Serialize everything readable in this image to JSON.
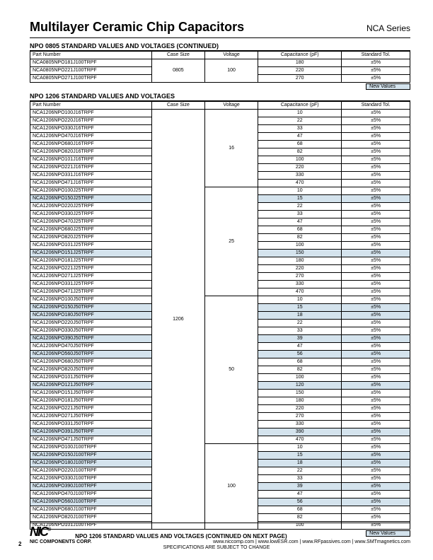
{
  "doc_title": "Multilayer Ceramic Chip Capacitors",
  "series": "NCA Series",
  "section1_title": "NPO 0805 STANDARD VALUES AND VOLTAGES (CONTINUED)",
  "section2_title": "NPO 1206 STANDARD VALUES AND VOLTAGES",
  "new_values_label": "New Values",
  "page_number": "2",
  "footer_next": "NPO 1206 STANDARD VALUES AND VOLTAGES (CONTINUED ON NEXT PAGE)",
  "footer_corp": "NIC COMPONENTS CORP.",
  "footer_urls": "www.niccomp.com   |  www.lowESR.com   |  www.RFpassives.com   |  www.SMTmagnetics.com",
  "footer_spec": "SPECIFICATIONS ARE SUBJECT TO CHANGE",
  "logo_text": "NIC",
  "headers": {
    "pn": "Part Number",
    "cs": "Case Size",
    "v": "Voltage",
    "cap": "Capacitance (pF)",
    "tol": "Standard Tol."
  },
  "t1": {
    "case_size": "0805",
    "voltage": "100",
    "rows": [
      {
        "pn": "NCA0805NPO181J100TRPF",
        "cap": "180",
        "tol": "±5%",
        "hl": false
      },
      {
        "pn": "NCA0805NPO221J100TRPF",
        "cap": "220",
        "tol": "±5%",
        "hl": false
      },
      {
        "pn": "NCA0805NPO271J100TRPF",
        "cap": "270",
        "tol": "±5%",
        "hl": false
      }
    ]
  },
  "t2": {
    "case_size": "1206",
    "groups": [
      {
        "voltage": "16",
        "rows": [
          {
            "pn": "NCA1206NPO100J16TRPF",
            "cap": "10",
            "tol": "±5%",
            "hl": false
          },
          {
            "pn": "NCA1206NPO220J16TRPF",
            "cap": "22",
            "tol": "±5%",
            "hl": false
          },
          {
            "pn": "NCA1206NPO330J16TRPF",
            "cap": "33",
            "tol": "±5%",
            "hl": false
          },
          {
            "pn": "NCA1206NPO470J16TRPF",
            "cap": "47",
            "tol": "±5%",
            "hl": false
          },
          {
            "pn": "NCA1206NPO680J16TRPF",
            "cap": "68",
            "tol": "±5%",
            "hl": false
          },
          {
            "pn": "NCA1206NPO820J16TRPF",
            "cap": "82",
            "tol": "±5%",
            "hl": false
          },
          {
            "pn": "NCA1206NPO101J16TRPF",
            "cap": "100",
            "tol": "±5%",
            "hl": false
          },
          {
            "pn": "NCA1206NPO221J16TRPF",
            "cap": "220",
            "tol": "±5%",
            "hl": false
          },
          {
            "pn": "NCA1206NPO331J16TRPF",
            "cap": "330",
            "tol": "±5%",
            "hl": false
          },
          {
            "pn": "NCA1206NPO471J16TRPF",
            "cap": "470",
            "tol": "±5%",
            "hl": false
          }
        ]
      },
      {
        "voltage": "25",
        "rows": [
          {
            "pn": "NCA1206NPO100J25TRPF",
            "cap": "10",
            "tol": "±5%",
            "hl": false
          },
          {
            "pn": "NCA1206NPO150J25TRPF",
            "cap": "15",
            "tol": "±5%",
            "hl": true
          },
          {
            "pn": "NCA1206NPO220J25TRPF",
            "cap": "22",
            "tol": "±5%",
            "hl": false
          },
          {
            "pn": "NCA1206NPO330J25TRPF",
            "cap": "33",
            "tol": "±5%",
            "hl": false
          },
          {
            "pn": "NCA1206NPO470J25TRPF",
            "cap": "47",
            "tol": "±5%",
            "hl": false
          },
          {
            "pn": "NCA1206NPO680J25TRPF",
            "cap": "68",
            "tol": "±5%",
            "hl": false
          },
          {
            "pn": "NCA1206NPO820J25TRPF",
            "cap": "82",
            "tol": "±5%",
            "hl": false
          },
          {
            "pn": "NCA1206NPO101J25TRPF",
            "cap": "100",
            "tol": "±5%",
            "hl": false
          },
          {
            "pn": "NCA1206NPO151J25TRPF",
            "cap": "150",
            "tol": "±5%",
            "hl": true
          },
          {
            "pn": "NCA1206NPO181J25TRPF",
            "cap": "180",
            "tol": "±5%",
            "hl": false
          },
          {
            "pn": "NCA1206NPO221J25TRPF",
            "cap": "220",
            "tol": "±5%",
            "hl": false
          },
          {
            "pn": "NCA1206NPO271J25TRPF",
            "cap": "270",
            "tol": "±5%",
            "hl": false
          },
          {
            "pn": "NCA1206NPO331J25TRPF",
            "cap": "330",
            "tol": "±5%",
            "hl": false
          },
          {
            "pn": "NCA1206NPO471J25TRPF",
            "cap": "470",
            "tol": "±5%",
            "hl": false
          }
        ]
      },
      {
        "voltage": "50",
        "rows": [
          {
            "pn": "NCA1206NPO100J50TRPF",
            "cap": "10",
            "tol": "±5%",
            "hl": false
          },
          {
            "pn": "NCA1206NPO150J50TRPF",
            "cap": "15",
            "tol": "±5%",
            "hl": true
          },
          {
            "pn": "NCA1206NPO180J50TRPF",
            "cap": "18",
            "tol": "±5%",
            "hl": true
          },
          {
            "pn": "NCA1206NPO220J50TRPF",
            "cap": "22",
            "tol": "±5%",
            "hl": false
          },
          {
            "pn": "NCA1206NPO330J50TRPF",
            "cap": "33",
            "tol": "±5%",
            "hl": false
          },
          {
            "pn": "NCA1206NPO390J50TRPF",
            "cap": "39",
            "tol": "±5%",
            "hl": true
          },
          {
            "pn": "NCA1206NPO470J50TRPF",
            "cap": "47",
            "tol": "±5%",
            "hl": false
          },
          {
            "pn": "NCA1206NPO560J50TRPF",
            "cap": "56",
            "tol": "±5%",
            "hl": true
          },
          {
            "pn": "NCA1206NPO680J50TRPF",
            "cap": "68",
            "tol": "±5%",
            "hl": false
          },
          {
            "pn": "NCA1206NPO820J50TRPF",
            "cap": "82",
            "tol": "±5%",
            "hl": false
          },
          {
            "pn": "NCA1206NPO101J50TRPF",
            "cap": "100",
            "tol": "±5%",
            "hl": false
          },
          {
            "pn": "NCA1206NPO121J50TRPF",
            "cap": "120",
            "tol": "±5%",
            "hl": true
          },
          {
            "pn": "NCA1206NPO151J50TRPF",
            "cap": "150",
            "tol": "±5%",
            "hl": false
          },
          {
            "pn": "NCA1206NPO181J50TRPF",
            "cap": "180",
            "tol": "±5%",
            "hl": false
          },
          {
            "pn": "NCA1206NPO221J50TRPF",
            "cap": "220",
            "tol": "±5%",
            "hl": false
          },
          {
            "pn": "NCA1206NPO271J50TRPF",
            "cap": "270",
            "tol": "±5%",
            "hl": false
          },
          {
            "pn": "NCA1206NPO331J50TRPF",
            "cap": "330",
            "tol": "±5%",
            "hl": false
          },
          {
            "pn": "NCA1206NPO391J50TRPF",
            "cap": "390",
            "tol": "±5%",
            "hl": true
          },
          {
            "pn": "NCA1206NPO471J50TRPF",
            "cap": "470",
            "tol": "±5%",
            "hl": false
          }
        ]
      },
      {
        "voltage": "100",
        "rows": [
          {
            "pn": "NCA1206NPO100J100TRPF",
            "cap": "10",
            "tol": "±5%",
            "hl": false
          },
          {
            "pn": "NCA1206NPO150J100TRPF",
            "cap": "15",
            "tol": "±5%",
            "hl": true
          },
          {
            "pn": "NCA1206NPO180J100TRPF",
            "cap": "18",
            "tol": "±5%",
            "hl": true
          },
          {
            "pn": "NCA1206NPO220J100TRPF",
            "cap": "22",
            "tol": "±5%",
            "hl": false
          },
          {
            "pn": "NCA1206NPO330J100TRPF",
            "cap": "33",
            "tol": "±5%",
            "hl": false
          },
          {
            "pn": "NCA1206NPO390J100TRPF",
            "cap": "39",
            "tol": "±5%",
            "hl": true
          },
          {
            "pn": "NCA1206NPO470J100TRPF",
            "cap": "47",
            "tol": "±5%",
            "hl": false
          },
          {
            "pn": "NCA1206NPO560J100TRPF",
            "cap": "56",
            "tol": "±5%",
            "hl": true
          },
          {
            "pn": "NCA1206NPO680J100TRPF",
            "cap": "68",
            "tol": "±5%",
            "hl": false
          },
          {
            "pn": "NCA1206NPO820J100TRPF",
            "cap": "82",
            "tol": "±5%",
            "hl": false
          },
          {
            "pn": "NCA1206NPO101J100TRPF",
            "cap": "100",
            "tol": "±5%",
            "hl": false
          }
        ]
      }
    ]
  },
  "col_widths": {
    "pn": "160px",
    "cs": "70px",
    "v": "70px",
    "cap": "110px",
    "tol": "90px"
  },
  "colors": {
    "highlight": "#d4e3ed",
    "border": "#000000",
    "text": "#000000"
  }
}
